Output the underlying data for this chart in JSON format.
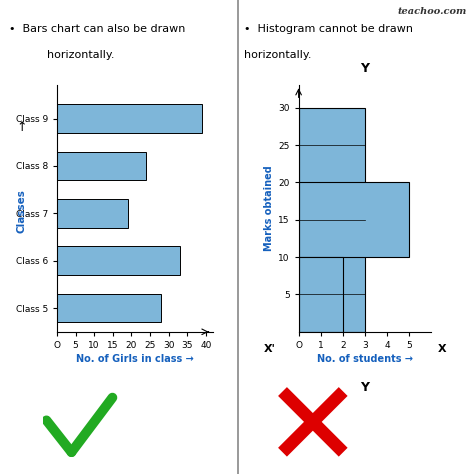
{
  "left_title_line1": "•  Bars chart can also be drawn",
  "left_title_line2": "horizontally.",
  "right_title_line1": "•  Histogram cannot be drawn",
  "right_title_line2": "horizontally.",
  "bar_categories": [
    "Class 5",
    "Class 6",
    "Class 7",
    "Class 8",
    "Class 9"
  ],
  "bar_values": [
    28,
    33,
    19,
    24,
    39
  ],
  "bar_color": "#7EB6D9",
  "bar_xlabel": "No. of Girls in class →",
  "bar_ylabel": "Classes",
  "bar_xtick_labels": [
    "O",
    "5",
    "10",
    "15",
    "20",
    "25",
    "30",
    "35",
    "40"
  ],
  "bar_xticks": [
    0,
    5,
    10,
    15,
    20,
    25,
    30,
    35,
    40
  ],
  "hist_color": "#7EB6D9",
  "hist_xlabel": "No. of students →",
  "hist_ylabel": "Marks obtained",
  "hist_xticks": [
    0,
    1,
    2,
    3,
    4,
    5
  ],
  "hist_xtick_labels": [
    "O",
    "1",
    "2",
    "3",
    "4",
    "5"
  ],
  "hist_yticks": [
    5,
    10,
    15,
    20,
    25,
    30
  ],
  "watermark": "teachoo.com",
  "label_color": "#1560BD",
  "text_color": "#000000",
  "bg_color": "#FFFFFF",
  "divider_color": "#888888",
  "check_color": "#22AA22",
  "cross_color": "#DD0000"
}
